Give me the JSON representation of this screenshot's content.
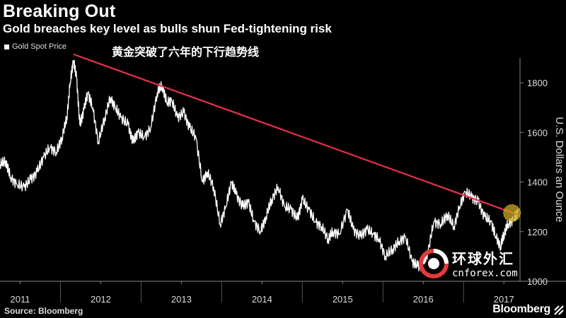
{
  "header": {
    "title": "Breaking Out",
    "subtitle": "Gold breaches key level as bulls shun Fed-tightening risk"
  },
  "annotation": "黄金突破了六年的下行趋势线",
  "source": "Source: Bloomberg",
  "brand": "Bloomberg",
  "watermark": {
    "chinese": "环球外汇",
    "english": "cnforex.com"
  },
  "colors": {
    "background": "#000000",
    "price_line": "#ffffff",
    "trendline": "#e8304a",
    "highlight": "#c9a820"
  },
  "chart_data": {
    "type": "line",
    "ylabel": "U.S. Dollars an Ounce",
    "ylim": [
      1000,
      1900
    ],
    "yticks": [
      1000,
      1200,
      1400,
      1600,
      1800
    ],
    "xlim": [
      2010.75,
      2017.2
    ],
    "xticks": [
      {
        "label": "2011",
        "pos": 2011.0
      },
      {
        "label": "2012",
        "pos": 2012.0
      },
      {
        "label": "2013",
        "pos": 2013.0
      },
      {
        "label": "2014",
        "pos": 2014.0
      },
      {
        "label": "2015",
        "pos": 2015.0
      },
      {
        "label": "2016",
        "pos": 2016.0
      },
      {
        "label": "2017",
        "pos": 2017.0
      }
    ],
    "legend": {
      "placement": "top-left",
      "entries": [
        "Gold Spot Price"
      ]
    },
    "grid": false,
    "series": [
      {
        "name": "Gold Spot Price",
        "points": [
          [
            2010.75,
            1470
          ],
          [
            2010.82,
            1485
          ],
          [
            2010.88,
            1420
          ],
          [
            2010.96,
            1390
          ],
          [
            2011.05,
            1380
          ],
          [
            2011.13,
            1410
          ],
          [
            2011.21,
            1440
          ],
          [
            2011.29,
            1500
          ],
          [
            2011.37,
            1540
          ],
          [
            2011.45,
            1520
          ],
          [
            2011.52,
            1580
          ],
          [
            2011.58,
            1660
          ],
          [
            2011.62,
            1800
          ],
          [
            2011.66,
            1890
          ],
          [
            2011.7,
            1820
          ],
          [
            2011.74,
            1630
          ],
          [
            2011.79,
            1690
          ],
          [
            2011.84,
            1760
          ],
          [
            2011.9,
            1700
          ],
          [
            2011.97,
            1560
          ],
          [
            2012.05,
            1660
          ],
          [
            2012.12,
            1740
          ],
          [
            2012.18,
            1700
          ],
          [
            2012.25,
            1660
          ],
          [
            2012.34,
            1630
          ],
          [
            2012.4,
            1560
          ],
          [
            2012.46,
            1600
          ],
          [
            2012.54,
            1580
          ],
          [
            2012.62,
            1620
          ],
          [
            2012.7,
            1760
          ],
          [
            2012.76,
            1790
          ],
          [
            2012.82,
            1720
          ],
          [
            2012.88,
            1730
          ],
          [
            2012.95,
            1660
          ],
          [
            2013.03,
            1680
          ],
          [
            2013.1,
            1620
          ],
          [
            2013.18,
            1580
          ],
          [
            2013.26,
            1400
          ],
          [
            2013.32,
            1440
          ],
          [
            2013.4,
            1380
          ],
          [
            2013.48,
            1230
          ],
          [
            2013.55,
            1300
          ],
          [
            2013.62,
            1400
          ],
          [
            2013.68,
            1350
          ],
          [
            2013.76,
            1300
          ],
          [
            2013.83,
            1320
          ],
          [
            2013.9,
            1240
          ],
          [
            2013.98,
            1200
          ],
          [
            2014.05,
            1260
          ],
          [
            2014.12,
            1330
          ],
          [
            2014.2,
            1380
          ],
          [
            2014.28,
            1300
          ],
          [
            2014.36,
            1290
          ],
          [
            2014.44,
            1250
          ],
          [
            2014.5,
            1330
          ],
          [
            2014.58,
            1290
          ],
          [
            2014.66,
            1240
          ],
          [
            2014.74,
            1220
          ],
          [
            2014.82,
            1170
          ],
          [
            2014.88,
            1200
          ],
          [
            2014.96,
            1190
          ],
          [
            2015.06,
            1290
          ],
          [
            2015.13,
            1210
          ],
          [
            2015.22,
            1180
          ],
          [
            2015.3,
            1210
          ],
          [
            2015.38,
            1190
          ],
          [
            2015.45,
            1170
          ],
          [
            2015.53,
            1100
          ],
          [
            2015.62,
            1130
          ],
          [
            2015.7,
            1160
          ],
          [
            2015.78,
            1180
          ],
          [
            2015.86,
            1080
          ],
          [
            2015.93,
            1060
          ],
          [
            2016.0,
            1070
          ],
          [
            2016.06,
            1120
          ],
          [
            2016.13,
            1240
          ],
          [
            2016.22,
            1230
          ],
          [
            2016.3,
            1270
          ],
          [
            2016.38,
            1220
          ],
          [
            2016.45,
            1300
          ],
          [
            2016.52,
            1360
          ],
          [
            2016.6,
            1340
          ],
          [
            2016.68,
            1320
          ],
          [
            2016.76,
            1260
          ],
          [
            2016.84,
            1240
          ],
          [
            2016.9,
            1180
          ],
          [
            2016.96,
            1140
          ],
          [
            2017.0,
            1190
          ],
          [
            2017.05,
            1230
          ],
          [
            2017.12,
            1250
          ],
          [
            2017.18,
            1280
          ]
        ]
      },
      {
        "name": "Trendline",
        "points": [
          [
            2011.66,
            1915
          ],
          [
            2017.2,
            1265
          ]
        ]
      }
    ],
    "annotations": [
      {
        "text": "黄金突破了六年的下行趋势线",
        "placement": "top"
      },
      {
        "marker": "breakout-highlight",
        "x": 2017.1,
        "y": 1275
      }
    ]
  }
}
